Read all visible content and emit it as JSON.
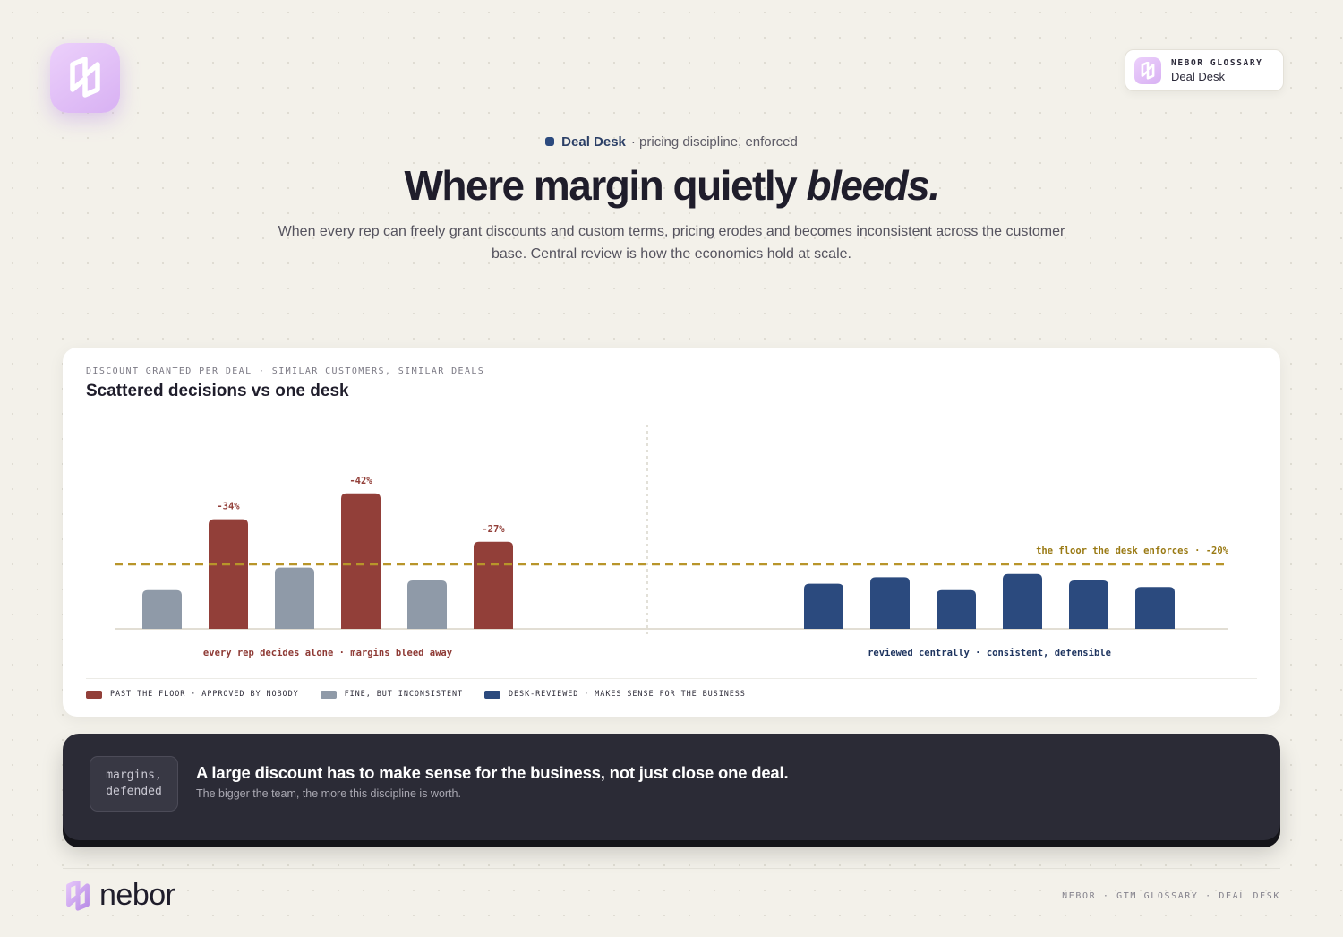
{
  "brand": {
    "wordmark": "nebor",
    "accent": "#d8b1f3"
  },
  "badge": {
    "title": "NEBOR GLOSSARY",
    "subtitle": "Deal Desk"
  },
  "hero": {
    "eyebrow_strong": "Deal Desk",
    "eyebrow_rest": "· pricing discipline, enforced",
    "headline_lead": "Where margin quietly ",
    "headline_emphasis": "bleeds.",
    "lede": "When every rep can freely grant discounts and custom terms, pricing erodes and becomes inconsistent across the customer base. Central review is how the economics hold at scale."
  },
  "card": {
    "kicker": "DISCOUNT GRANTED PER DEAL · SIMILAR CUSTOMERS, SIMILAR DEALS",
    "title": "Scattered decisions vs one desk"
  },
  "chart_data": {
    "type": "bar",
    "title": "Scattered decisions vs one desk",
    "subtitle": "DISCOUNT GRANTED PER DEAL · SIMILAR CUSTOMERS, SIMILAR DEALS",
    "ylim": [
      0,
      45
    ],
    "floor": {
      "value": 20,
      "label": "the floor the desk enforces · -20%",
      "color": "#b8952a"
    },
    "groups": [
      {
        "label": "every rep decides alone · margins bleed away",
        "label_color": "#8e3a35",
        "bars": [
          {
            "value": 12,
            "category": "fine"
          },
          {
            "value": 34,
            "category": "past",
            "label": "-34%"
          },
          {
            "value": 19,
            "category": "fine"
          },
          {
            "value": 42,
            "category": "past",
            "label": "-42%"
          },
          {
            "value": 15,
            "category": "fine"
          },
          {
            "value": 27,
            "category": "past",
            "label": "-27%"
          }
        ]
      },
      {
        "label": "reviewed centrally · consistent, defensible",
        "label_color": "#1f3560",
        "bars": [
          {
            "value": 14,
            "category": "desk"
          },
          {
            "value": 16,
            "category": "desk"
          },
          {
            "value": 12,
            "category": "desk"
          },
          {
            "value": 17,
            "category": "desk"
          },
          {
            "value": 15,
            "category": "desk"
          },
          {
            "value": 13,
            "category": "desk"
          }
        ]
      }
    ],
    "series": [
      {
        "key": "past",
        "name": "PAST THE FLOOR · APPROVED BY NOBODY",
        "color": "#923f39"
      },
      {
        "key": "fine",
        "name": "FINE, BUT INCONSISTENT",
        "color": "#8f9aa8"
      },
      {
        "key": "desk",
        "name": "DESK-REVIEWED · MAKES SENSE FOR THE BUSINESS",
        "color": "#2b4a7e"
      }
    ]
  },
  "callout": {
    "chip_line1": "margins,",
    "chip_line2": "defended",
    "title": "A large discount has to make sense for the business, not just close one deal.",
    "subtitle": "The bigger the team, the more this discipline is worth."
  },
  "footer": {
    "meta": "NEBOR · GTM GLOSSARY · DEAL DESK"
  }
}
